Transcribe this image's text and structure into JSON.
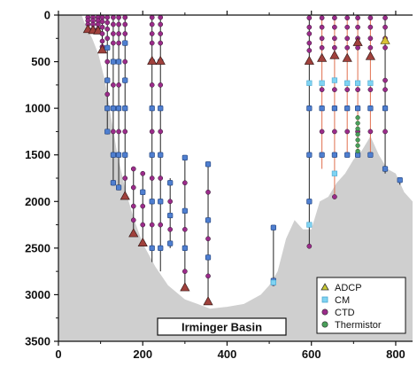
{
  "chart_data": {
    "type": "scatter",
    "title": "",
    "xlabel": "",
    "ylabel": "",
    "xlim": [
      0,
      840
    ],
    "ylim": [
      3500,
      0
    ],
    "x_ticks": [
      "0",
      "200",
      "400",
      "600",
      "800"
    ],
    "y_ticks": [
      "0",
      "500",
      "1000",
      "1500",
      "2000",
      "2500",
      "3000",
      "3500"
    ],
    "annotation": "Irminger Basin",
    "legend": {
      "placement": "bottom-right",
      "entries": [
        {
          "name": "ADCP",
          "color": "#c8c832",
          "marker": "triangle"
        },
        {
          "name": "CM",
          "color": "#7fd3f2",
          "marker": "square"
        },
        {
          "name": "CTD",
          "color": "#9b2b8a",
          "marker": "circle"
        },
        {
          "name": "Thermistor",
          "color": "#4aa05a",
          "marker": "circle"
        }
      ]
    },
    "colors": {
      "seafloor": "#cfcfcf",
      "cable": "#222222",
      "cable_shelf": "#e07050",
      "cm_marker": "#4f7fd0",
      "ctd_marker": "#9b2b8a",
      "adcp_fill": "#a0413c",
      "adcp_yellow": "#d9c236",
      "thermistor": "#4aa05a"
    },
    "bathymetry": {
      "x": [
        0,
        55,
        65,
        80,
        95,
        110,
        125,
        140,
        160,
        180,
        200,
        230,
        260,
        300,
        330,
        360,
        400,
        440,
        480,
        500,
        520,
        540,
        560,
        580,
        600,
        620,
        640,
        660,
        680,
        700,
        720,
        740,
        760,
        780,
        800,
        820,
        840
      ],
      "depth": [
        0,
        0,
        120,
        250,
        420,
        700,
        1100,
        1500,
        1900,
        2200,
        2450,
        2700,
        2900,
        3050,
        3100,
        3150,
        3130,
        3100,
        3000,
        2900,
        2750,
        2400,
        2200,
        2300,
        2300,
        2000,
        1950,
        1800,
        1700,
        1550,
        1450,
        1300,
        1500,
        1650,
        1700,
        1900,
        2000
      ]
    },
    "moorings": [
      {
        "x": 70,
        "top": 25,
        "bottom": 160,
        "cm": [],
        "ctd": [
          25,
          60,
          100,
          150
        ],
        "adcp": [
          160
        ],
        "therm": []
      },
      {
        "x": 82,
        "top": 25,
        "bottom": 170,
        "cm": [],
        "ctd": [
          25,
          60,
          100,
          150
        ],
        "adcp": [
          170
        ],
        "therm": []
      },
      {
        "x": 94,
        "top": 25,
        "bottom": 175,
        "cm": [],
        "ctd": [
          25,
          60,
          100,
          150
        ],
        "adcp": [
          175
        ],
        "therm": []
      },
      {
        "x": 104,
        "top": 25,
        "bottom": 380,
        "cm": [],
        "ctd": [
          25,
          70,
          130,
          200,
          280,
          340
        ],
        "adcp": [
          380
        ],
        "therm": []
      },
      {
        "x": 116,
        "top": 25,
        "bottom": 1280,
        "cm": [
          350,
          700,
          1000,
          1250
        ],
        "ctd": [
          25,
          80,
          150,
          250,
          500,
          850
        ],
        "adcp": [],
        "therm": []
      },
      {
        "x": 130,
        "top": 25,
        "bottom": 1830,
        "cm": [
          500,
          1000,
          1500,
          1800
        ],
        "ctd": [
          25,
          100,
          200,
          300,
          750,
          1250
        ],
        "adcp": [],
        "therm": []
      },
      {
        "x": 143,
        "top": 25,
        "bottom": 1880,
        "cm": [
          500,
          1000,
          1500,
          1850
        ],
        "ctd": [
          25,
          100,
          200,
          300,
          750,
          1250
        ],
        "adcp": [],
        "therm": []
      },
      {
        "x": 158,
        "top": 25,
        "bottom": 1950,
        "cm": [
          300,
          700,
          1000,
          1500
        ],
        "ctd": [
          25,
          100,
          200,
          500,
          1250,
          1750
        ],
        "adcp": [
          1950
        ],
        "therm": []
      },
      {
        "x": 178,
        "top": 1650,
        "bottom": 2350,
        "cm": [],
        "ctd": [
          1650,
          1850,
          2050,
          2200
        ],
        "adcp": [
          2350
        ],
        "therm": []
      },
      {
        "x": 200,
        "top": 1700,
        "bottom": 2450,
        "cm": [
          1900
        ],
        "ctd": [
          1700,
          2050,
          2250
        ],
        "adcp": [
          2450
        ],
        "therm": []
      },
      {
        "x": 222,
        "top": 25,
        "bottom": 2650,
        "cm": [
          500,
          1000,
          1500,
          2000,
          2500
        ],
        "ctd": [
          25,
          100,
          200,
          300,
          750,
          1250,
          1750,
          2250
        ],
        "adcp": [
          500
        ],
        "therm": []
      },
      {
        "x": 242,
        "top": 25,
        "bottom": 2750,
        "cm": [
          500,
          1000,
          1500,
          2000,
          2500
        ],
        "ctd": [
          25,
          100,
          200,
          300,
          750,
          1250,
          1750,
          2250
        ],
        "adcp": [
          500
        ],
        "therm": []
      },
      {
        "x": 265,
        "top": 1750,
        "bottom": 2500,
        "cm": [
          1800,
          2150,
          2450
        ],
        "ctd": [
          2000,
          2300
        ],
        "adcp": [],
        "therm": []
      },
      {
        "x": 300,
        "top": 1530,
        "bottom": 2930,
        "cm": [
          1530,
          2100,
          2500
        ],
        "ctd": [
          1800,
          2300,
          2750
        ],
        "adcp": [
          2930
        ],
        "therm": []
      },
      {
        "x": 355,
        "top": 1600,
        "bottom": 3080,
        "cm": [
          1600,
          2200,
          2600
        ],
        "ctd": [
          1900,
          2400,
          2800
        ],
        "adcp": [
          3080
        ],
        "therm": []
      },
      {
        "x": 510,
        "top": 2280,
        "bottom": 2900,
        "cm": [
          2280,
          2850
        ],
        "ctd": [
          2880
        ],
        "adcp": [],
        "therm": [],
        "cm_light": [
          2870
        ]
      },
      {
        "x": 595,
        "top": 30,
        "bottom": 2480,
        "cm": [
          1000,
          1500,
          2000
        ],
        "ctd": [
          30,
          130,
          200,
          300,
          380,
          2480
        ],
        "adcp": [
          500
        ],
        "therm": [],
        "cm_light": [
          730,
          2250
        ]
      },
      {
        "x": 625,
        "top": 30,
        "bottom": 1650,
        "cm": [
          1000,
          1500
        ],
        "ctd": [
          30,
          130,
          250,
          350,
          800,
          1250
        ],
        "adcp": [
          470
        ],
        "therm": [],
        "cm_light": [
          730
        ]
      },
      {
        "x": 655,
        "top": 30,
        "bottom": 1950,
        "cm": [
          1000,
          1500
        ],
        "ctd": [
          30,
          130,
          250,
          350,
          800,
          1250,
          1950
        ],
        "adcp": [
          440
        ],
        "therm": [],
        "cm_light": [
          700,
          1700
        ]
      },
      {
        "x": 685,
        "top": 30,
        "bottom": 1500,
        "cm": [
          1000,
          1500
        ],
        "ctd": [
          30,
          130,
          250,
          350,
          800,
          1250
        ],
        "adcp": [
          470
        ],
        "therm": [],
        "cm_light": [
          730
        ]
      },
      {
        "x": 710,
        "top": 30,
        "bottom": 1500,
        "cm": [
          1000,
          1500
        ],
        "ctd": [
          30,
          130,
          250,
          350,
          800,
          1250
        ],
        "adcp": [
          300
        ],
        "therm": [
          1100,
          1160,
          1220,
          1280,
          1340,
          1400,
          1460
        ],
        "cm_light": [
          730
        ]
      },
      {
        "x": 740,
        "top": 30,
        "bottom": 1500,
        "cm": [
          1000,
          1500
        ],
        "ctd": [
          30,
          130,
          250,
          350,
          800,
          1250
        ],
        "adcp": [
          450
        ],
        "therm": [],
        "cm_light": [
          730
        ]
      },
      {
        "x": 775,
        "top": 30,
        "bottom": 1700,
        "cm": [
          1000,
          1650
        ],
        "ctd": [
          30,
          130,
          250,
          350,
          700,
          800,
          1250
        ],
        "adcp_yellow": [
          280
        ],
        "therm": [],
        "cm_light": []
      },
      {
        "x": 810,
        "top": 1750,
        "bottom": 1820,
        "cm": [
          1770
        ],
        "ctd": [],
        "adcp": [],
        "therm": []
      }
    ]
  }
}
